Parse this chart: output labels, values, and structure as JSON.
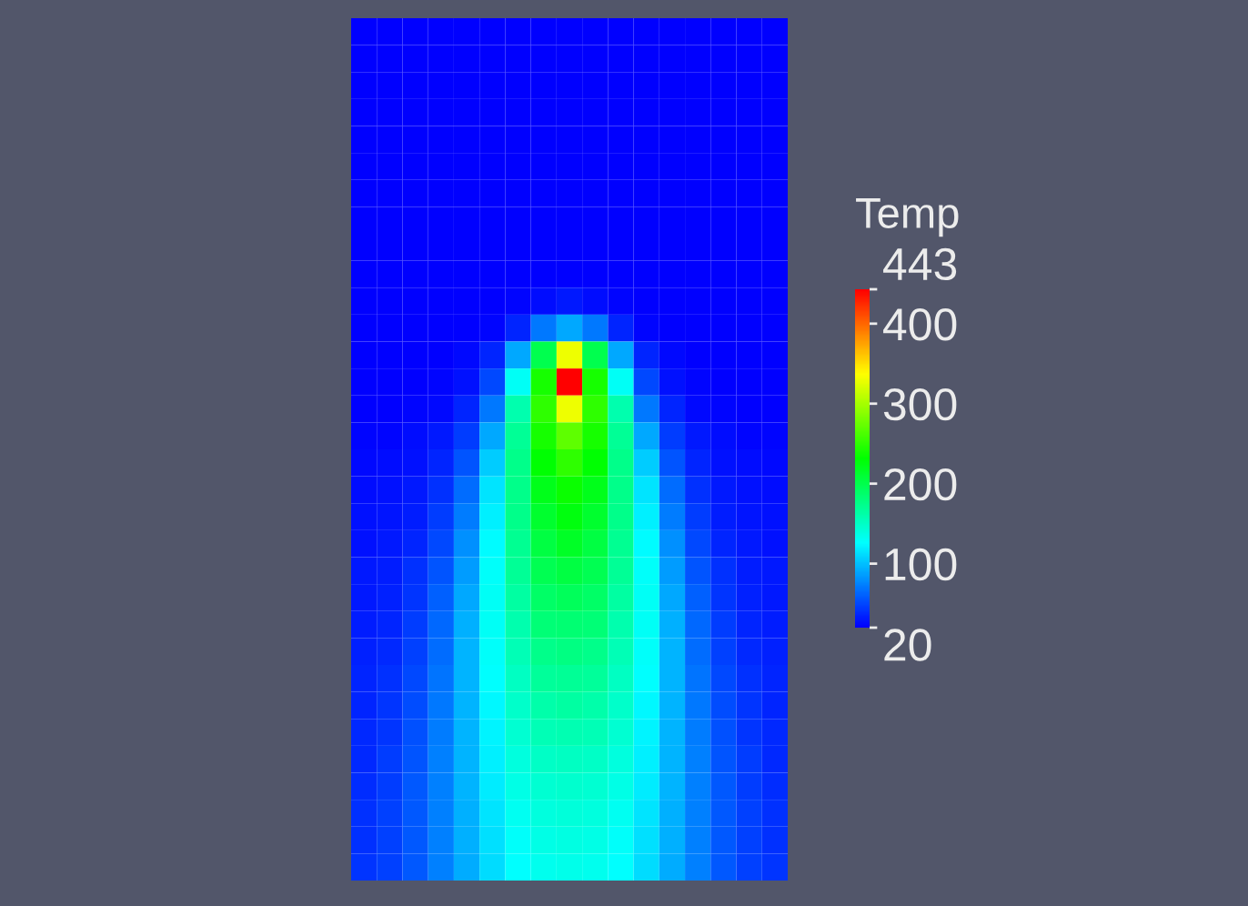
{
  "chart_data": {
    "type": "heatmap",
    "clabel": "Temp",
    "categories": [
      null,
      null,
      null,
      null,
      null,
      null,
      null,
      null,
      null,
      null,
      null,
      null,
      null,
      null,
      null,
      null,
      null
    ],
    "y_categories": [
      null,
      null,
      null,
      null,
      null,
      null,
      null,
      null,
      null,
      null,
      null,
      null,
      null,
      null,
      null,
      null,
      null,
      null,
      null,
      null,
      null,
      null,
      null,
      null,
      null,
      null,
      null,
      null,
      null,
      null,
      null,
      null
    ],
    "clim": [
      20,
      443
    ],
    "cticks": [
      20,
      100,
      200,
      300,
      400,
      443
    ],
    "cells": [
      [
        20,
        20,
        20,
        20,
        20,
        20,
        20,
        20,
        20,
        20,
        20,
        20,
        20,
        20,
        20,
        20,
        20
      ],
      [
        20,
        20,
        20,
        20,
        20,
        20,
        20,
        20,
        20,
        20,
        20,
        20,
        20,
        20,
        20,
        20,
        20
      ],
      [
        20,
        20,
        20,
        20,
        20,
        20,
        20,
        20,
        20,
        20,
        20,
        20,
        20,
        20,
        20,
        20,
        20
      ],
      [
        20,
        20,
        20,
        20,
        20,
        20,
        20,
        20,
        20,
        20,
        20,
        20,
        20,
        20,
        20,
        20,
        20
      ],
      [
        20,
        20,
        20,
        20,
        20,
        20,
        20,
        20,
        20,
        20,
        20,
        20,
        20,
        20,
        20,
        20,
        20
      ],
      [
        20,
        20,
        20,
        20,
        20,
        20,
        20,
        20,
        20,
        20,
        20,
        20,
        20,
        20,
        20,
        20,
        20
      ],
      [
        20,
        20,
        20,
        20,
        20,
        20,
        20,
        20,
        20,
        20,
        20,
        20,
        20,
        20,
        20,
        20,
        20
      ],
      [
        20,
        20,
        20,
        20,
        20,
        20,
        20,
        20,
        20,
        20,
        20,
        20,
        20,
        20,
        20,
        20,
        20
      ],
      [
        20,
        20,
        20,
        20,
        20,
        20,
        20,
        20,
        20,
        20,
        20,
        20,
        20,
        20,
        20,
        20,
        20
      ],
      [
        20,
        20,
        20,
        20,
        20,
        20,
        20,
        20,
        20,
        20,
        20,
        20,
        20,
        20,
        20,
        20,
        20
      ],
      [
        20,
        20,
        20,
        20,
        20,
        20,
        22,
        26,
        30,
        26,
        22,
        20,
        20,
        20,
        20,
        20,
        20
      ],
      [
        20,
        20,
        20,
        20,
        21,
        22,
        35,
        70,
        90,
        70,
        35,
        22,
        21,
        20,
        20,
        20,
        20
      ],
      [
        20,
        20,
        20,
        21,
        24,
        35,
        90,
        200,
        330,
        200,
        90,
        35,
        24,
        21,
        20,
        20,
        20
      ],
      [
        20,
        20,
        21,
        22,
        28,
        50,
        130,
        240,
        443,
        240,
        130,
        50,
        28,
        22,
        21,
        20,
        20
      ],
      [
        21,
        21,
        22,
        24,
        35,
        70,
        160,
        250,
        330,
        250,
        160,
        70,
        35,
        24,
        22,
        21,
        21
      ],
      [
        22,
        23,
        25,
        30,
        45,
        90,
        170,
        240,
        270,
        240,
        170,
        90,
        45,
        30,
        25,
        23,
        22
      ],
      [
        24,
        25,
        28,
        35,
        55,
        105,
        175,
        230,
        250,
        230,
        175,
        105,
        55,
        35,
        28,
        25,
        24
      ],
      [
        26,
        27,
        30,
        40,
        65,
        115,
        175,
        220,
        235,
        220,
        175,
        115,
        65,
        40,
        30,
        27,
        26
      ],
      [
        28,
        29,
        33,
        45,
        72,
        120,
        175,
        212,
        225,
        212,
        175,
        120,
        72,
        45,
        33,
        29,
        28
      ],
      [
        28,
        30,
        36,
        50,
        80,
        125,
        172,
        205,
        215,
        205,
        172,
        125,
        80,
        50,
        36,
        30,
        28
      ],
      [
        30,
        32,
        40,
        55,
        85,
        128,
        170,
        198,
        205,
        198,
        170,
        128,
        85,
        55,
        40,
        32,
        30
      ],
      [
        31,
        34,
        43,
        60,
        90,
        130,
        165,
        190,
        195,
        190,
        165,
        130,
        90,
        60,
        43,
        34,
        31
      ],
      [
        32,
        36,
        46,
        63,
        93,
        130,
        160,
        182,
        185,
        182,
        160,
        130,
        93,
        63,
        46,
        36,
        32
      ],
      [
        34,
        38,
        48,
        66,
        95,
        128,
        156,
        175,
        178,
        175,
        156,
        128,
        95,
        66,
        48,
        38,
        34
      ],
      [
        35,
        40,
        50,
        68,
        96,
        126,
        152,
        168,
        170,
        168,
        152,
        126,
        96,
        68,
        50,
        40,
        35
      ],
      [
        36,
        42,
        52,
        70,
        96,
        124,
        148,
        162,
        165,
        162,
        148,
        124,
        96,
        70,
        52,
        42,
        36
      ],
      [
        37,
        43,
        54,
        72,
        96,
        122,
        144,
        156,
        158,
        156,
        144,
        122,
        96,
        72,
        54,
        43,
        37
      ],
      [
        38,
        45,
        56,
        73,
        96,
        120,
        140,
        150,
        152,
        150,
        140,
        120,
        96,
        73,
        56,
        45,
        38
      ],
      [
        39,
        46,
        57,
        74,
        95,
        118,
        136,
        145,
        147,
        145,
        136,
        118,
        95,
        74,
        57,
        46,
        39
      ],
      [
        40,
        47,
        58,
        74,
        94,
        115,
        132,
        140,
        142,
        140,
        132,
        115,
        94,
        74,
        58,
        47,
        40
      ],
      [
        41,
        48,
        58,
        74,
        93,
        113,
        128,
        136,
        138,
        136,
        128,
        113,
        93,
        74,
        58,
        48,
        41
      ],
      [
        42,
        48,
        58,
        73,
        92,
        111,
        126,
        133,
        135,
        133,
        126,
        111,
        92,
        73,
        58,
        48,
        42
      ]
    ]
  }
}
